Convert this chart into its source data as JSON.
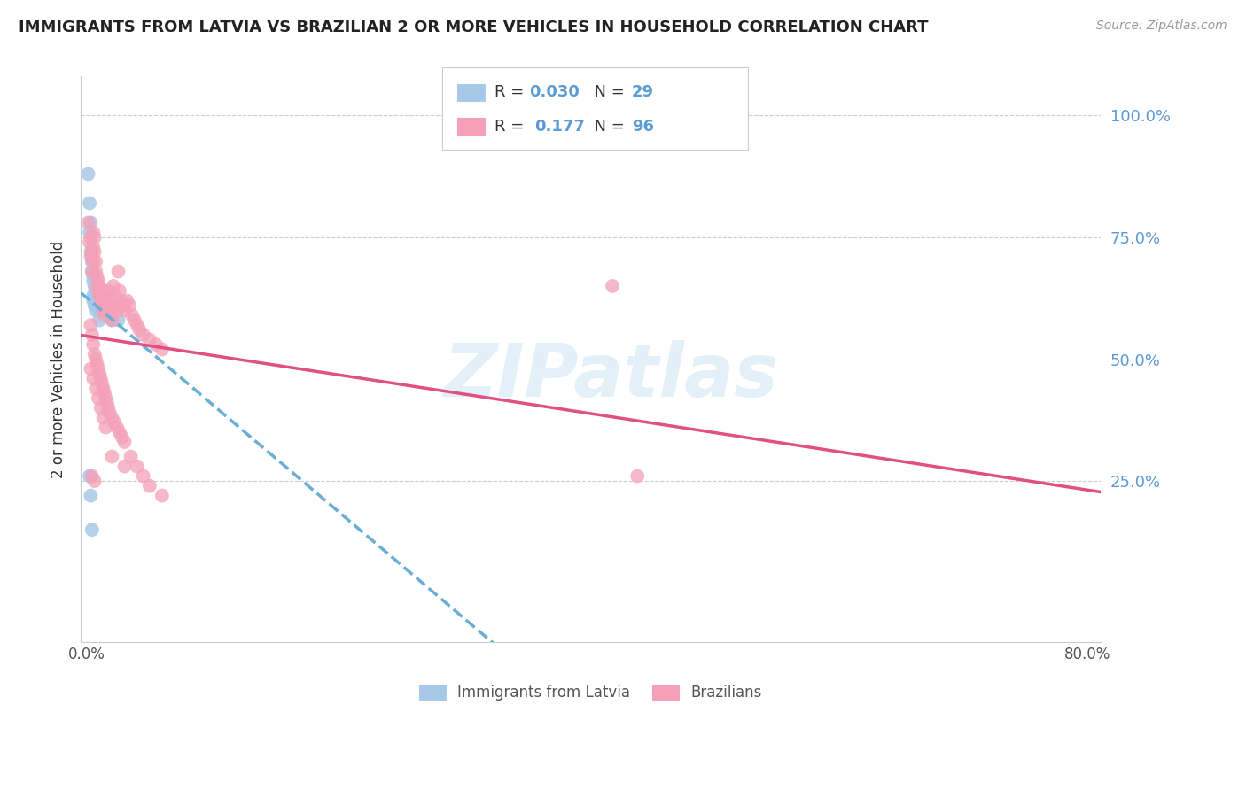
{
  "title": "IMMIGRANTS FROM LATVIA VS BRAZILIAN 2 OR MORE VEHICLES IN HOUSEHOLD CORRELATION CHART",
  "source": "Source: ZipAtlas.com",
  "ylabel": "2 or more Vehicles in Household",
  "legend_label1": "Immigrants from Latvia",
  "legend_label2": "Brazilians",
  "R1": 0.03,
  "N1": 29,
  "R2": 0.177,
  "N2": 96,
  "color_latvia": "#a8c8e8",
  "color_brazil": "#f4a0b8",
  "color_latvia_line": "#6aaed6",
  "color_brazil_line": "#e05080",
  "color_right_axis": "#5b9bd5",
  "background_color": "#ffffff",
  "latvia_x": [
    0.001,
    0.002,
    0.002,
    0.003,
    0.003,
    0.004,
    0.004,
    0.005,
    0.005,
    0.005,
    0.006,
    0.006,
    0.007,
    0.007,
    0.008,
    0.008,
    0.009,
    0.01,
    0.01,
    0.012,
    0.015,
    0.018,
    0.02,
    0.025,
    0.002,
    0.003,
    0.004,
    0.005,
    0.006
  ],
  "latvia_y": [
    0.88,
    0.82,
    0.76,
    0.78,
    0.72,
    0.7,
    0.68,
    0.67,
    0.66,
    0.62,
    0.65,
    0.63,
    0.64,
    0.6,
    0.63,
    0.61,
    0.62,
    0.6,
    0.58,
    0.6,
    0.6,
    0.59,
    0.58,
    0.58,
    0.26,
    0.22,
    0.15,
    0.63,
    0.61
  ],
  "brazil_x": [
    0.001,
    0.002,
    0.003,
    0.003,
    0.004,
    0.004,
    0.005,
    0.005,
    0.005,
    0.006,
    0.006,
    0.007,
    0.007,
    0.008,
    0.008,
    0.009,
    0.009,
    0.01,
    0.01,
    0.011,
    0.011,
    0.012,
    0.012,
    0.013,
    0.013,
    0.014,
    0.014,
    0.015,
    0.015,
    0.016,
    0.016,
    0.017,
    0.017,
    0.018,
    0.018,
    0.019,
    0.02,
    0.021,
    0.022,
    0.023,
    0.024,
    0.025,
    0.026,
    0.027,
    0.028,
    0.03,
    0.032,
    0.034,
    0.036,
    0.038,
    0.04,
    0.042,
    0.045,
    0.05,
    0.055,
    0.06,
    0.003,
    0.004,
    0.005,
    0.006,
    0.007,
    0.008,
    0.009,
    0.01,
    0.011,
    0.012,
    0.013,
    0.014,
    0.015,
    0.016,
    0.017,
    0.018,
    0.02,
    0.022,
    0.024,
    0.026,
    0.028,
    0.03,
    0.035,
    0.04,
    0.045,
    0.05,
    0.06,
    0.003,
    0.005,
    0.007,
    0.009,
    0.011,
    0.013,
    0.015,
    0.02,
    0.03,
    0.42,
    0.44,
    0.004,
    0.006
  ],
  "brazil_y": [
    0.78,
    0.74,
    0.75,
    0.71,
    0.72,
    0.68,
    0.76,
    0.73,
    0.7,
    0.75,
    0.72,
    0.7,
    0.68,
    0.67,
    0.65,
    0.66,
    0.64,
    0.65,
    0.63,
    0.64,
    0.62,
    0.63,
    0.61,
    0.62,
    0.6,
    0.61,
    0.59,
    0.62,
    0.6,
    0.63,
    0.61,
    0.64,
    0.62,
    0.61,
    0.59,
    0.6,
    0.58,
    0.65,
    0.63,
    0.61,
    0.6,
    0.68,
    0.64,
    0.62,
    0.61,
    0.6,
    0.62,
    0.61,
    0.59,
    0.58,
    0.57,
    0.56,
    0.55,
    0.54,
    0.53,
    0.52,
    0.57,
    0.55,
    0.53,
    0.51,
    0.5,
    0.49,
    0.48,
    0.47,
    0.46,
    0.45,
    0.44,
    0.43,
    0.42,
    0.41,
    0.4,
    0.39,
    0.38,
    0.37,
    0.36,
    0.35,
    0.34,
    0.33,
    0.3,
    0.28,
    0.26,
    0.24,
    0.22,
    0.48,
    0.46,
    0.44,
    0.42,
    0.4,
    0.38,
    0.36,
    0.3,
    0.28,
    0.65,
    0.26,
    0.26,
    0.25
  ],
  "xlim": [
    -0.005,
    0.81
  ],
  "ylim": [
    -0.08,
    1.08
  ],
  "yticks": [
    0.0,
    0.25,
    0.5,
    0.75,
    1.0
  ],
  "ytick_labels_right": [
    "25.0%",
    "50.0%",
    "75.0%",
    "100.0%"
  ],
  "xtick_label_left": "0.0%",
  "xtick_label_right": "80.0%"
}
